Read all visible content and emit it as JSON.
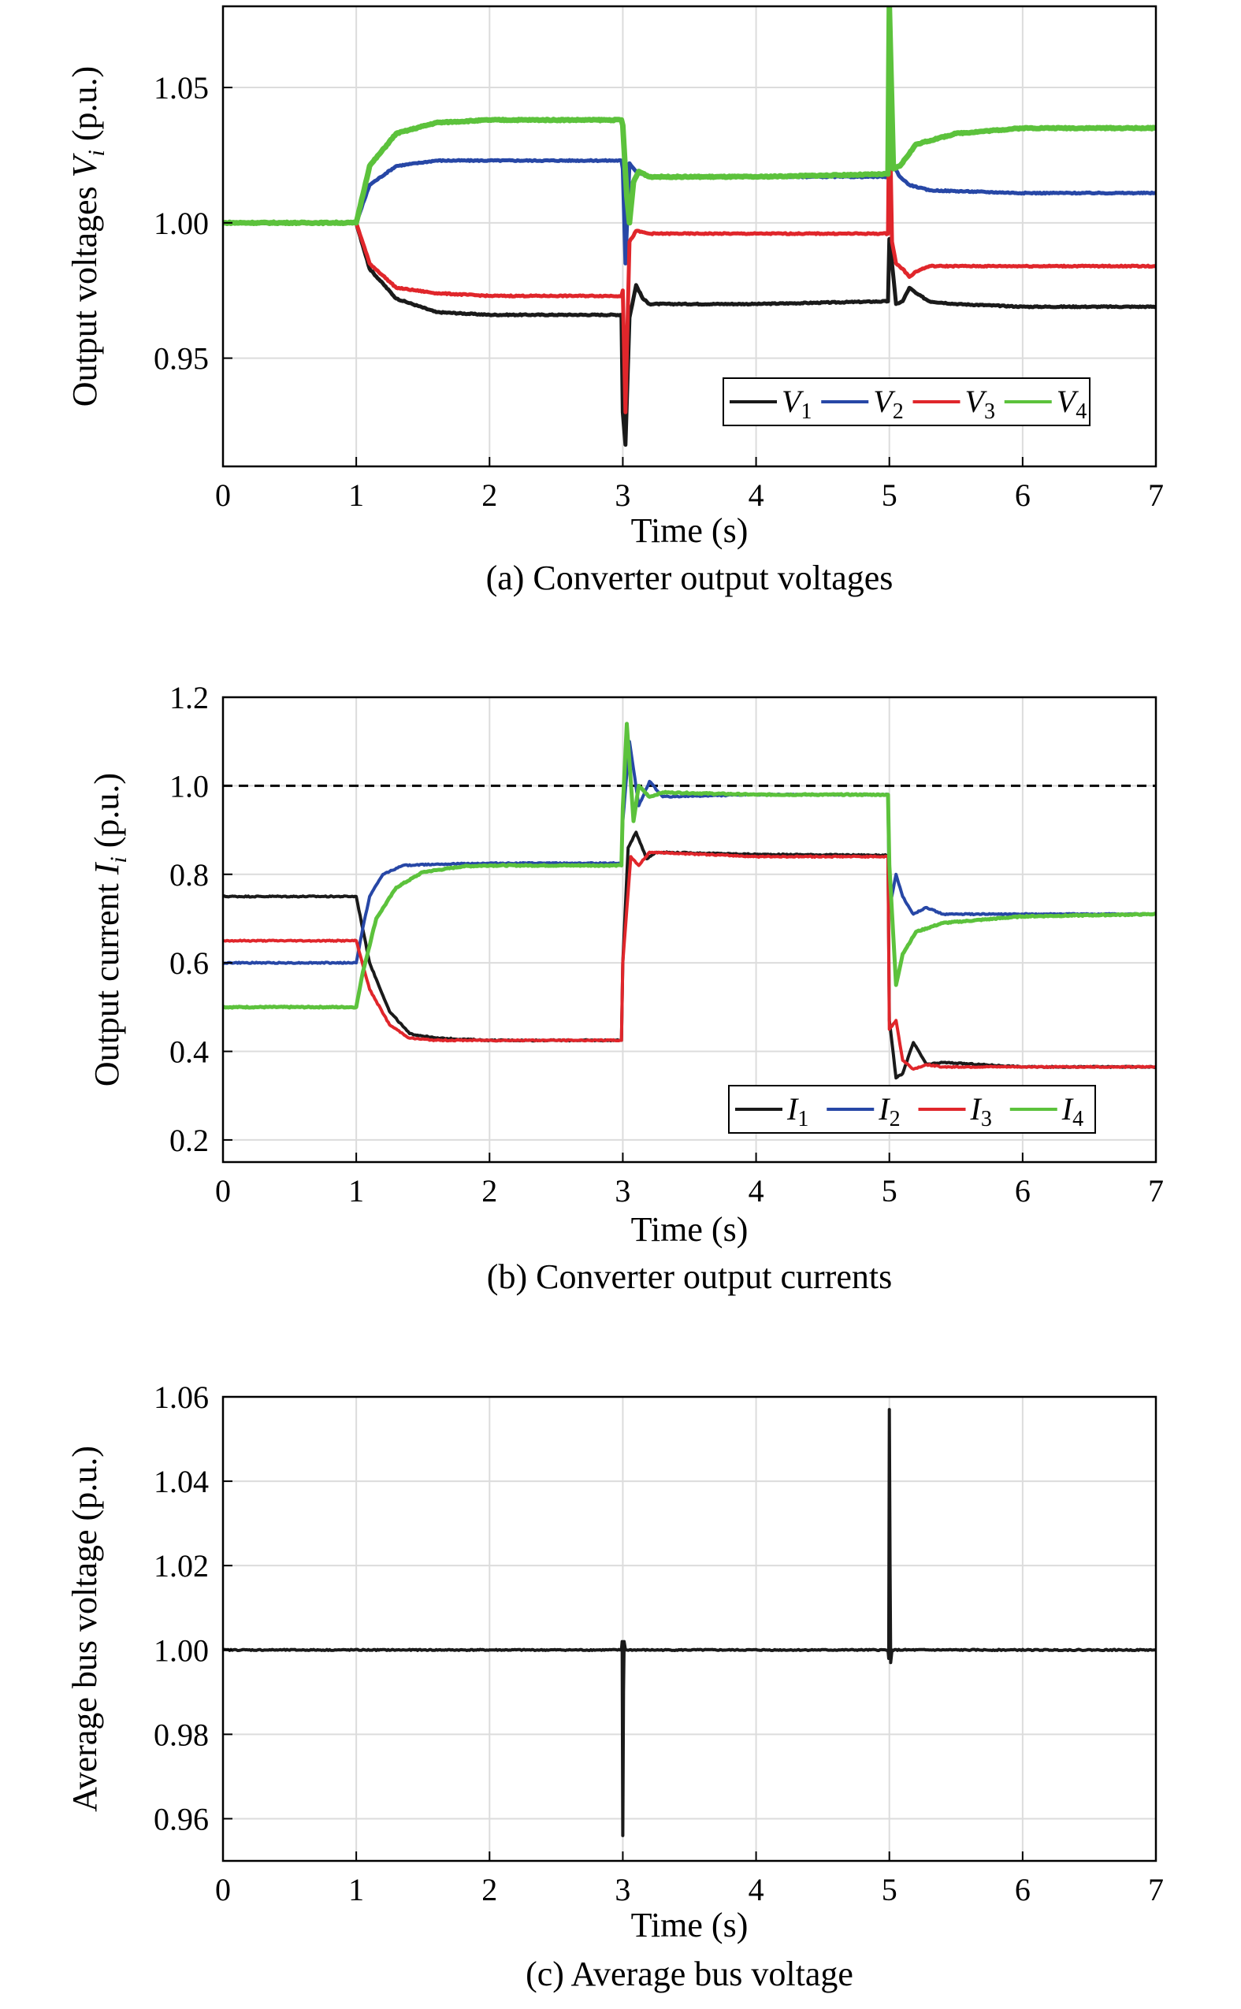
{
  "chart_data": [
    {
      "id": "a",
      "type": "line",
      "caption": "(a) Converter output voltages",
      "xlabel": "Time (s)",
      "ylabel_parts": [
        "Output voltages ",
        "V",
        "i",
        " (p.u.)"
      ],
      "xlim": [
        0,
        7
      ],
      "ylim": [
        0.91,
        1.08
      ],
      "xticks": [
        0,
        1,
        2,
        3,
        4,
        5,
        6,
        7
      ],
      "xtick_labels": [
        "0",
        "1",
        "2",
        "3",
        "4",
        "5",
        "6",
        "7"
      ],
      "yticks": [
        0.95,
        1.0,
        1.05
      ],
      "ytick_labels": [
        "0.95",
        "1.00",
        "1.05"
      ],
      "grid": true,
      "legend_position": "bottom-right",
      "reference_line": null,
      "series": [
        {
          "name": "V",
          "sub": "1",
          "color": "#1a1a1a",
          "stroke": 5,
          "x": [
            0,
            1.0,
            1.1,
            1.3,
            1.6,
            2.0,
            2.99,
            3.0,
            3.02,
            3.05,
            3.1,
            3.15,
            3.2,
            4.0,
            4.99,
            5.0,
            5.02,
            5.05,
            5.1,
            5.15,
            5.2,
            5.3,
            5.5,
            6.0,
            7.0
          ],
          "y": [
            1.0,
            1.0,
            0.983,
            0.972,
            0.967,
            0.966,
            0.966,
            0.93,
            0.918,
            0.965,
            0.977,
            0.972,
            0.97,
            0.97,
            0.971,
            0.994,
            0.985,
            0.97,
            0.971,
            0.976,
            0.974,
            0.971,
            0.97,
            0.969,
            0.969
          ]
        },
        {
          "name": "V",
          "sub": "2",
          "color": "#2747a6",
          "stroke": 5,
          "x": [
            0,
            1.0,
            1.1,
            1.3,
            1.6,
            2.0,
            2.99,
            3.0,
            3.02,
            3.05,
            3.1,
            3.2,
            4.0,
            4.99,
            5.0,
            5.01,
            5.03,
            5.08,
            5.15,
            5.3,
            6.0,
            7.0
          ],
          "y": [
            1.0,
            1.0,
            1.014,
            1.021,
            1.023,
            1.023,
            1.023,
            1.02,
            0.985,
            1.022,
            1.019,
            1.017,
            1.017,
            1.017,
            1.066,
            1.045,
            1.021,
            1.017,
            1.014,
            1.012,
            1.011,
            1.011
          ]
        },
        {
          "name": "V",
          "sub": "3",
          "color": "#e0262b",
          "stroke": 5,
          "x": [
            0,
            1.0,
            1.1,
            1.3,
            1.6,
            2.0,
            2.99,
            3.0,
            3.02,
            3.05,
            3.1,
            3.2,
            4.0,
            4.99,
            5.0,
            5.02,
            5.05,
            5.1,
            5.15,
            5.2,
            5.3,
            6.0,
            7.0
          ],
          "y": [
            1.0,
            1.0,
            0.985,
            0.976,
            0.974,
            0.973,
            0.973,
            0.975,
            0.93,
            0.993,
            0.997,
            0.996,
            0.996,
            0.996,
            1.05,
            0.993,
            0.985,
            0.983,
            0.98,
            0.982,
            0.984,
            0.984,
            0.984
          ]
        },
        {
          "name": "V",
          "sub": "4",
          "color": "#5cc23c",
          "stroke": 7,
          "x": [
            0,
            1.0,
            1.1,
            1.3,
            1.6,
            2.0,
            2.99,
            3.0,
            3.03,
            3.05,
            3.08,
            3.12,
            3.2,
            4.0,
            4.99,
            5.0,
            5.01,
            5.03,
            5.08,
            5.2,
            5.5,
            6.0,
            7.0
          ],
          "y": [
            1.0,
            1.0,
            1.021,
            1.033,
            1.037,
            1.038,
            1.038,
            1.036,
            1.01,
            1.0,
            1.015,
            1.019,
            1.017,
            1.017,
            1.018,
            1.08,
            1.06,
            1.02,
            1.021,
            1.029,
            1.033,
            1.035,
            1.035
          ]
        }
      ]
    },
    {
      "id": "b",
      "type": "line",
      "caption": "(b) Converter output currents",
      "xlabel": "Time (s)",
      "ylabel_parts": [
        "Output current ",
        "I",
        "i",
        " (p.u.)"
      ],
      "xlim": [
        0,
        7
      ],
      "ylim": [
        0.15,
        1.2
      ],
      "xticks": [
        0,
        1,
        2,
        3,
        4,
        5,
        6,
        7
      ],
      "xtick_labels": [
        "0",
        "1",
        "2",
        "3",
        "4",
        "5",
        "6",
        "7"
      ],
      "yticks": [
        0.2,
        0.4,
        0.6,
        0.8,
        1.0,
        1.2
      ],
      "ytick_labels": [
        "0.2",
        "0.4",
        "0.6",
        "0.8",
        "1.0",
        "1.2"
      ],
      "grid": true,
      "legend_position": "bottom-right",
      "reference_line": 1.0,
      "series": [
        {
          "name": "I",
          "sub": "1",
          "color": "#1a1a1a",
          "stroke": 4,
          "x": [
            0,
            1.0,
            1.1,
            1.25,
            1.4,
            1.6,
            2.0,
            2.99,
            3.0,
            3.04,
            3.1,
            3.18,
            3.25,
            4.0,
            4.99,
            5.0,
            5.05,
            5.1,
            5.18,
            5.28,
            5.4,
            6.0,
            7.0
          ],
          "y": [
            0.75,
            0.75,
            0.6,
            0.49,
            0.44,
            0.43,
            0.425,
            0.425,
            0.6,
            0.86,
            0.895,
            0.835,
            0.85,
            0.845,
            0.843,
            0.47,
            0.34,
            0.35,
            0.42,
            0.37,
            0.375,
            0.365,
            0.365
          ]
        },
        {
          "name": "I",
          "sub": "2",
          "color": "#2747a6",
          "stroke": 4,
          "x": [
            0,
            1.0,
            1.05,
            1.1,
            1.2,
            1.35,
            1.6,
            2.0,
            2.99,
            3.0,
            3.05,
            3.12,
            3.2,
            3.3,
            4.0,
            4.99,
            5.0,
            5.05,
            5.1,
            5.18,
            5.28,
            5.4,
            6.0,
            7.0
          ],
          "y": [
            0.6,
            0.6,
            0.68,
            0.75,
            0.8,
            0.82,
            0.823,
            0.825,
            0.825,
            0.92,
            1.1,
            0.955,
            1.01,
            0.975,
            0.98,
            0.98,
            0.72,
            0.8,
            0.75,
            0.71,
            0.725,
            0.71,
            0.71,
            0.71
          ]
        },
        {
          "name": "I",
          "sub": "3",
          "color": "#e0262b",
          "stroke": 4,
          "x": [
            0,
            1.0,
            1.1,
            1.25,
            1.4,
            1.6,
            2.0,
            2.99,
            3.0,
            3.02,
            3.06,
            3.12,
            3.2,
            4.0,
            4.99,
            5.0,
            5.05,
            5.1,
            5.18,
            5.28,
            5.4,
            6.0,
            7.0
          ],
          "y": [
            0.65,
            0.65,
            0.54,
            0.46,
            0.43,
            0.425,
            0.425,
            0.425,
            0.6,
            0.68,
            0.84,
            0.82,
            0.85,
            0.84,
            0.84,
            0.45,
            0.47,
            0.38,
            0.36,
            0.37,
            0.365,
            0.365,
            0.365
          ]
        },
        {
          "name": "I",
          "sub": "4",
          "color": "#5cc23c",
          "stroke": 5,
          "x": [
            0,
            1.0,
            1.05,
            1.15,
            1.3,
            1.5,
            1.8,
            2.0,
            2.99,
            3.0,
            3.03,
            3.08,
            3.12,
            3.2,
            3.3,
            4.0,
            4.99,
            5.0,
            5.05,
            5.1,
            5.2,
            5.4,
            6.0,
            7.0
          ],
          "y": [
            0.5,
            0.5,
            0.58,
            0.7,
            0.77,
            0.805,
            0.818,
            0.82,
            0.82,
            0.95,
            1.14,
            0.92,
            1.0,
            0.975,
            0.985,
            0.98,
            0.98,
            0.82,
            0.55,
            0.62,
            0.67,
            0.69,
            0.705,
            0.71
          ]
        }
      ]
    },
    {
      "id": "c",
      "type": "line",
      "caption": "(c) Average bus voltage",
      "xlabel": "Time (s)",
      "ylabel_parts": [
        "Average bus voltage (p.u.)"
      ],
      "xlim": [
        0,
        7
      ],
      "ylim": [
        0.95,
        1.06
      ],
      "xticks": [
        0,
        1,
        2,
        3,
        4,
        5,
        6,
        7
      ],
      "xtick_labels": [
        "0",
        "1",
        "2",
        "3",
        "4",
        "5",
        "6",
        "7"
      ],
      "yticks": [
        0.96,
        0.98,
        1.0,
        1.02,
        1.04,
        1.06
      ],
      "ytick_labels": [
        "0.96",
        "0.98",
        "1.00",
        "1.02",
        "1.04",
        "1.06"
      ],
      "grid": true,
      "legend_position": null,
      "reference_line": null,
      "series": [
        {
          "name": "",
          "sub": "",
          "color": "#1a1a1a",
          "stroke": 4,
          "x": [
            0,
            2.99,
            2.995,
            3.0,
            3.005,
            3.01,
            3.02,
            4.99,
            4.995,
            5.0,
            5.005,
            5.01,
            5.02,
            7.0
          ],
          "y": [
            1.0,
            1.0,
            1.002,
            0.956,
            0.99,
            1.002,
            1.0,
            1.0,
            0.998,
            1.057,
            1.02,
            0.997,
            1.0,
            1.0
          ]
        }
      ]
    }
  ]
}
